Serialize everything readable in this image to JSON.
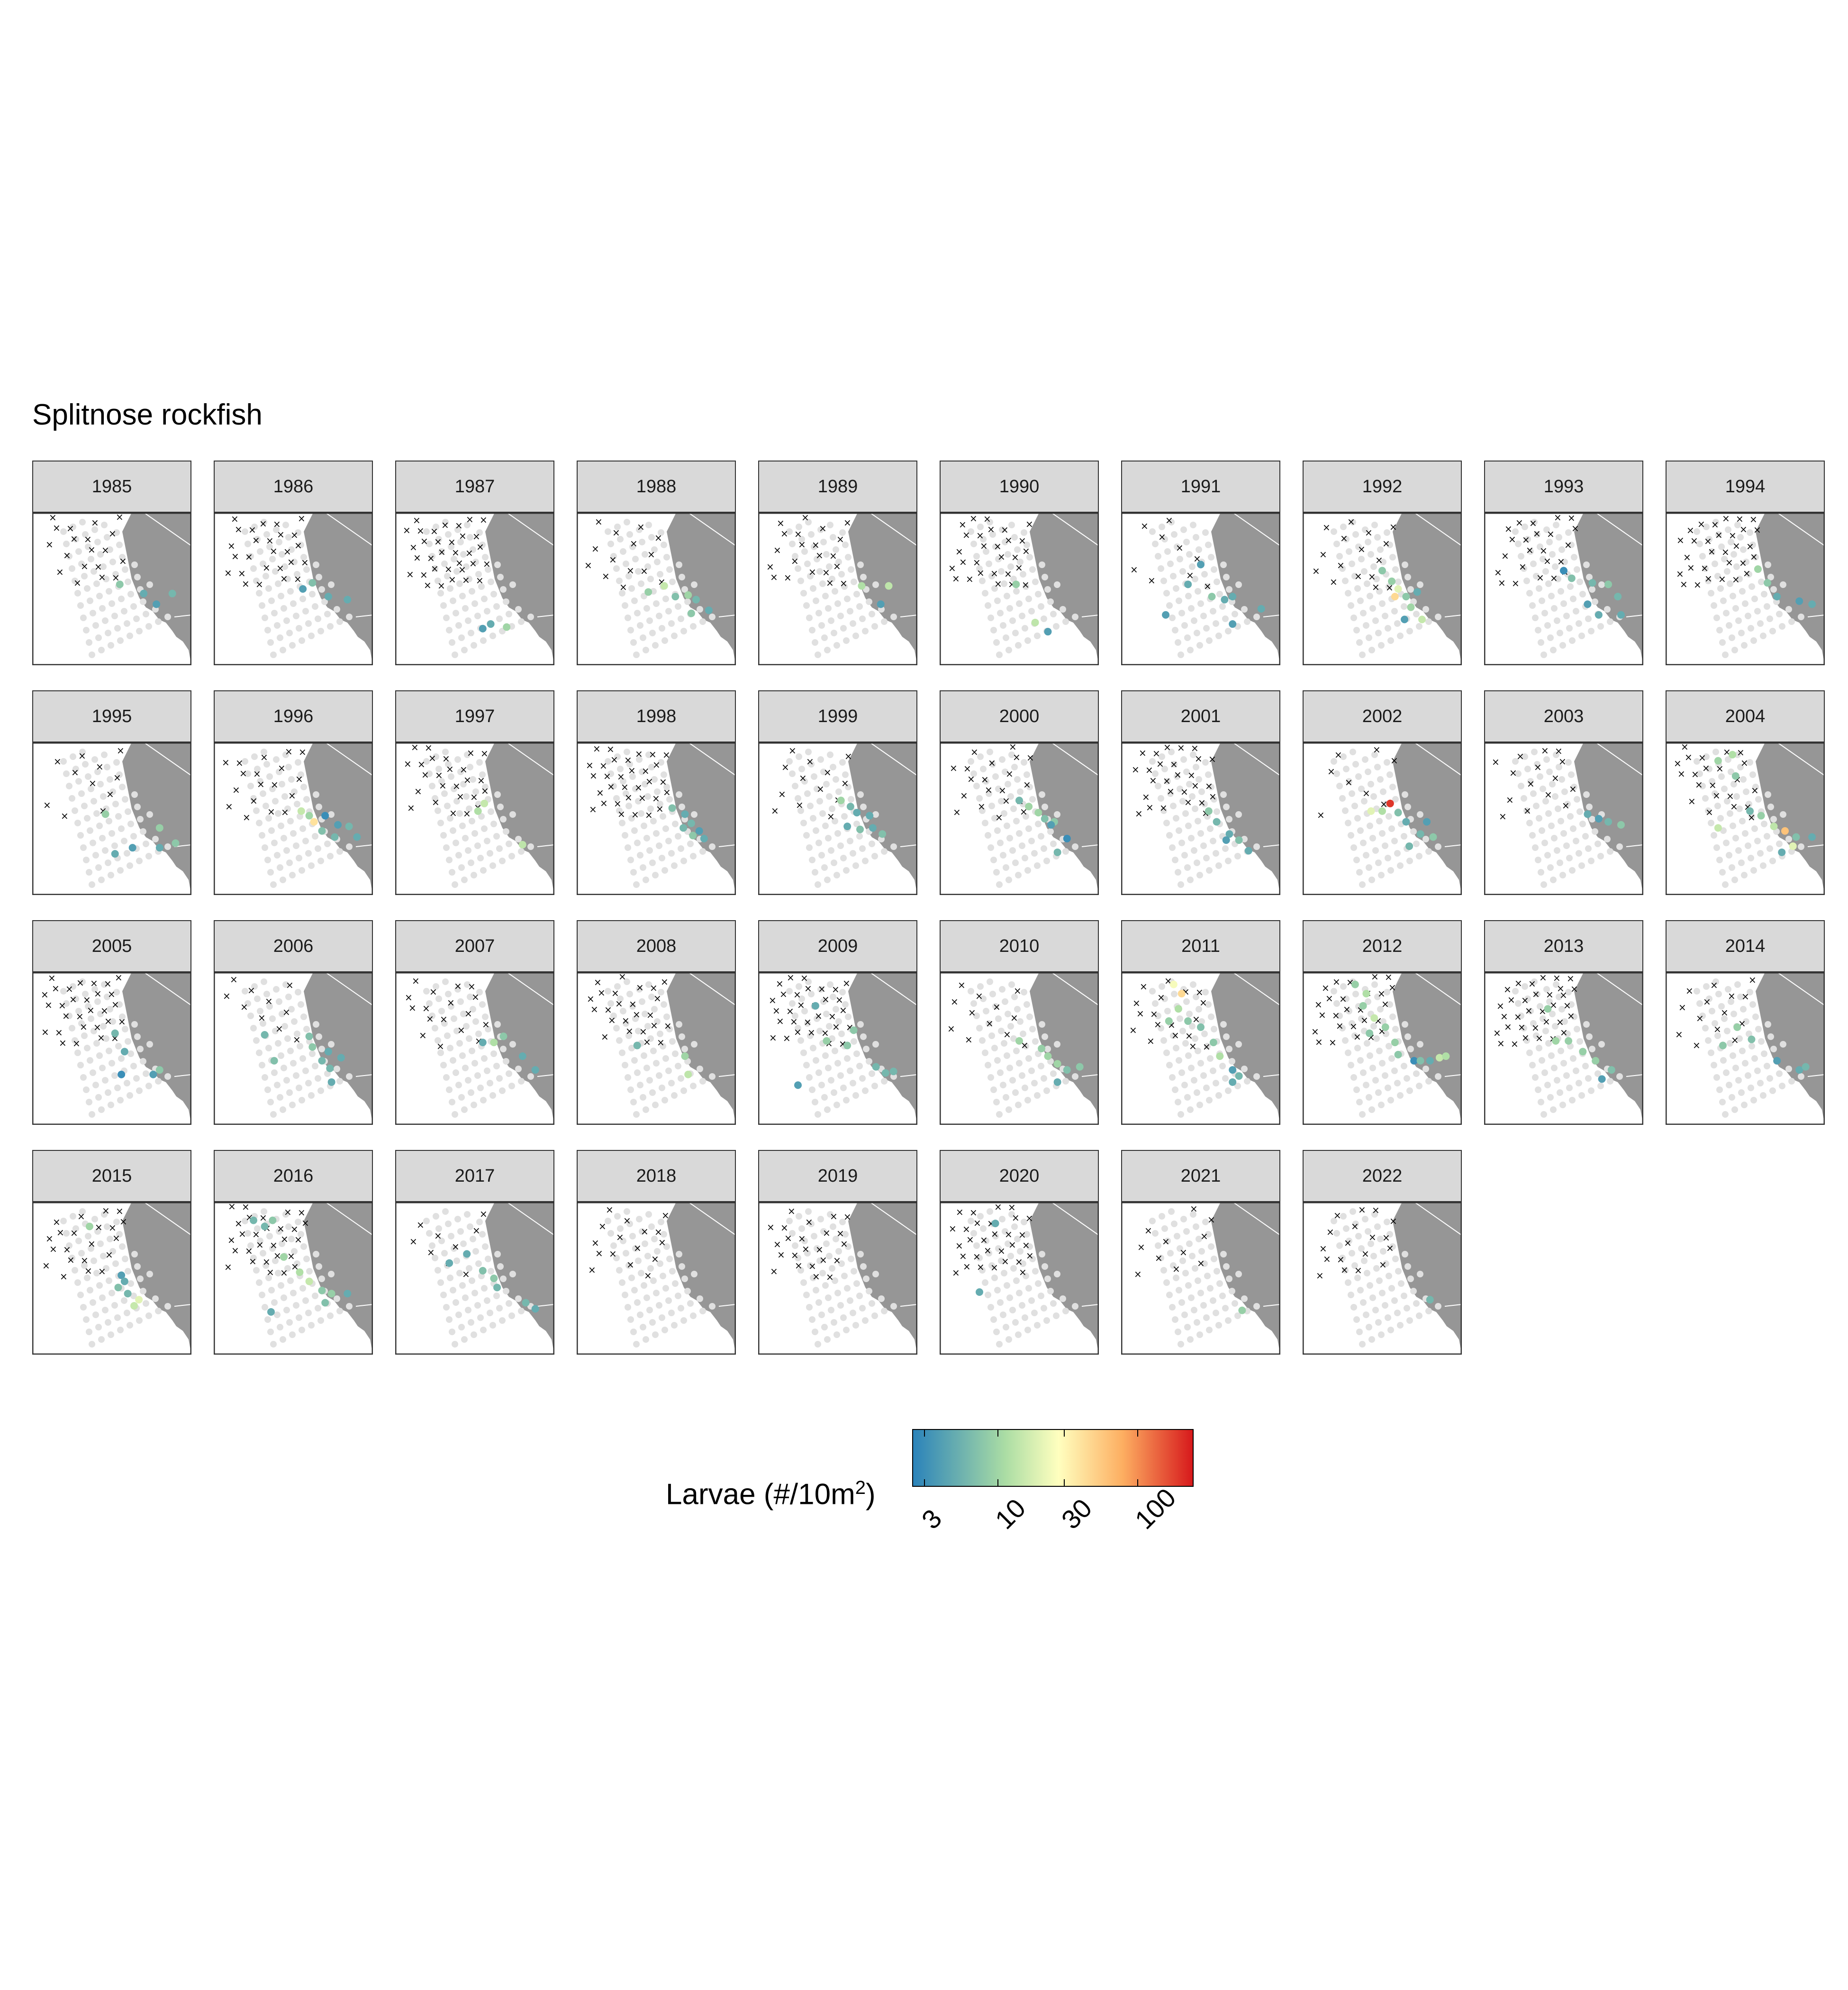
{
  "title": "Splitnose rockfish",
  "chart_data": {
    "type": "scatter",
    "title": "Splitnose rockfish",
    "facet_variable": "year",
    "colorbar": {
      "label_prefix": "Larvae (#/10m",
      "label_sup": "2",
      "label_suffix": ")",
      "scale": "log",
      "range": [
        2.5,
        250
      ],
      "ticks": [
        3,
        10,
        30,
        100
      ],
      "tick_labels": [
        "3",
        "10",
        "30",
        "100"
      ],
      "colors": [
        "#2b83ba",
        "#abdda4",
        "#ffffbf",
        "#fdae61",
        "#d7191c"
      ]
    },
    "legend_placement": "bottom",
    "colors": {
      "land": "#969696",
      "station_no_catch": "#e0e0e0",
      "not_sampled_marker": "#000000",
      "strip_fill": "#d9d9d9"
    },
    "panels": [
      {
        "year": "1985",
        "positives": [
          [
            55,
            47,
            8
          ],
          [
            70,
            53,
            5
          ],
          [
            88,
            53,
            6
          ],
          [
            78,
            60,
            4
          ]
        ]
      },
      {
        "year": "1986",
        "positives": [
          [
            62,
            46,
            7
          ],
          [
            56,
            50,
            4
          ],
          [
            72,
            55,
            5
          ],
          [
            84,
            57,
            5
          ]
        ]
      },
      {
        "year": "1987",
        "positives": [
          [
            55,
            76,
            4
          ],
          [
            60,
            73,
            5
          ],
          [
            70,
            75,
            10
          ]
        ]
      },
      {
        "year": "1988",
        "positives": [
          [
            45,
            52,
            9
          ],
          [
            55,
            48,
            15
          ],
          [
            62,
            55,
            7
          ],
          [
            70,
            54,
            10
          ],
          [
            75,
            57,
            6
          ],
          [
            83,
            64,
            5
          ],
          [
            72,
            66,
            8
          ]
        ]
      },
      {
        "year": "1989",
        "positives": [
          [
            65,
            48,
            12
          ],
          [
            77,
            60,
            4
          ],
          [
            82,
            48,
            14
          ]
        ]
      },
      {
        "year": "1990",
        "positives": [
          [
            48,
            47,
            9
          ],
          [
            60,
            72,
            14
          ],
          [
            68,
            78,
            4
          ]
        ]
      },
      {
        "year": "1991",
        "positives": [
          [
            50,
            34,
            4
          ],
          [
            42,
            47,
            5
          ],
          [
            57,
            55,
            8
          ],
          [
            65,
            57,
            5
          ],
          [
            70,
            55,
            5
          ],
          [
            88,
            63,
            5
          ],
          [
            70,
            73,
            4
          ],
          [
            28,
            67,
            4
          ]
        ]
      },
      {
        "year": "1992",
        "positives": [
          [
            50,
            38,
            8
          ],
          [
            56,
            45,
            9
          ],
          [
            60,
            50,
            20
          ],
          [
            58,
            55,
            45
          ],
          [
            65,
            55,
            8
          ],
          [
            68,
            62,
            10
          ],
          [
            75,
            70,
            15
          ],
          [
            64,
            70,
            4
          ],
          [
            72,
            52,
            5
          ]
        ]
      },
      {
        "year": "1993",
        "positives": [
          [
            50,
            38,
            3
          ],
          [
            55,
            43,
            7
          ],
          [
            68,
            46,
            6
          ],
          [
            78,
            47,
            8
          ],
          [
            84,
            55,
            6
          ],
          [
            65,
            60,
            4
          ],
          [
            72,
            67,
            5
          ],
          [
            86,
            67,
            5
          ]
        ]
      },
      {
        "year": "1994",
        "positives": [
          [
            58,
            37,
            10
          ],
          [
            64,
            46,
            8
          ],
          [
            70,
            55,
            5
          ],
          [
            84,
            58,
            4
          ],
          [
            92,
            60,
            5
          ]
        ]
      },
      {
        "year": "1995",
        "positives": [
          [
            46,
            47,
            9
          ],
          [
            63,
            69,
            4
          ],
          [
            52,
            73,
            5
          ],
          [
            80,
            56,
            9
          ],
          [
            90,
            66,
            8
          ],
          [
            80,
            69,
            5
          ]
        ]
      },
      {
        "year": "1996",
        "positives": [
          [
            55,
            45,
            15
          ],
          [
            60,
            48,
            10
          ],
          [
            63,
            52,
            40
          ],
          [
            70,
            48,
            3
          ],
          [
            78,
            54,
            4
          ],
          [
            85,
            55,
            6
          ],
          [
            68,
            58,
            7
          ],
          [
            90,
            62,
            5
          ],
          [
            76,
            62,
            6
          ]
        ]
      },
      {
        "year": "1997",
        "positives": [
          [
            52,
            45,
            12
          ],
          [
            56,
            40,
            15
          ],
          [
            80,
            67,
            14
          ]
        ]
      },
      {
        "year": "1998",
        "positives": [
          [
            60,
            43,
            7
          ],
          [
            68,
            47,
            5
          ],
          [
            72,
            53,
            6
          ],
          [
            77,
            58,
            4
          ],
          [
            67,
            56,
            6
          ],
          [
            73,
            61,
            8
          ],
          [
            80,
            63,
            5
          ]
        ]
      },
      {
        "year": "1999",
        "positives": [
          [
            52,
            38,
            10
          ],
          [
            58,
            42,
            6
          ],
          [
            62,
            46,
            5
          ],
          [
            70,
            48,
            5
          ],
          [
            56,
            55,
            5
          ],
          [
            72,
            56,
            5
          ],
          [
            78,
            60,
            7
          ],
          [
            64,
            57,
            7
          ]
        ]
      },
      {
        "year": "2000",
        "positives": [
          [
            50,
            38,
            6
          ],
          [
            56,
            42,
            10
          ],
          [
            62,
            46,
            10
          ],
          [
            66,
            50,
            7
          ],
          [
            72,
            52,
            8
          ],
          [
            80,
            63,
            3
          ],
          [
            74,
            72,
            6
          ],
          [
            70,
            54,
            4
          ]
        ]
      },
      {
        "year": "2001",
        "positives": [
          [
            55,
            45,
            8
          ],
          [
            60,
            52,
            6
          ],
          [
            68,
            60,
            5
          ],
          [
            74,
            64,
            7
          ],
          [
            66,
            64,
            4
          ],
          [
            80,
            71,
            5
          ]
        ]
      },
      {
        "year": "2002",
        "positives": [
          [
            55,
            40,
            200
          ],
          [
            43,
            45,
            20
          ],
          [
            50,
            45,
            12
          ],
          [
            60,
            46,
            7
          ],
          [
            65,
            52,
            5
          ],
          [
            78,
            52,
            4
          ],
          [
            74,
            60,
            6
          ],
          [
            82,
            62,
            8
          ],
          [
            67,
            68,
            6
          ]
        ]
      },
      {
        "year": "2003",
        "positives": [
          [
            65,
            47,
            5
          ],
          [
            72,
            50,
            4
          ],
          [
            78,
            52,
            6
          ],
          [
            86,
            54,
            8
          ]
        ]
      },
      {
        "year": "2004",
        "positives": [
          [
            33,
            12,
            10
          ],
          [
            42,
            8,
            12
          ],
          [
            44,
            22,
            8
          ],
          [
            53,
            45,
            6
          ],
          [
            60,
            48,
            9
          ],
          [
            68,
            55,
            14
          ],
          [
            33,
            56,
            15
          ],
          [
            75,
            58,
            60
          ],
          [
            82,
            62,
            7
          ],
          [
            92,
            62,
            5
          ],
          [
            80,
            68,
            20
          ],
          [
            73,
            72,
            5
          ]
        ]
      },
      {
        "year": "2005",
        "positives": [
          [
            52,
            40,
            6
          ],
          [
            58,
            52,
            5
          ],
          [
            56,
            67,
            3
          ],
          [
            80,
            64,
            8
          ],
          [
            76,
            67,
            4
          ]
        ]
      },
      {
        "year": "2006",
        "positives": [
          [
            32,
            41,
            6
          ],
          [
            60,
            42,
            7
          ],
          [
            62,
            49,
            8
          ],
          [
            72,
            52,
            5
          ],
          [
            80,
            56,
            5
          ],
          [
            68,
            58,
            6
          ],
          [
            73,
            63,
            6
          ],
          [
            74,
            72,
            5
          ],
          [
            38,
            58,
            7
          ]
        ]
      },
      {
        "year": "2007",
        "positives": [
          [
            55,
            46,
            5
          ],
          [
            62,
            46,
            12
          ],
          [
            68,
            42,
            8
          ],
          [
            80,
            55,
            5
          ],
          [
            88,
            64,
            5
          ]
        ]
      },
      {
        "year": "2008",
        "positives": [
          [
            38,
            48,
            6
          ],
          [
            68,
            55,
            10
          ],
          [
            70,
            67,
            14
          ]
        ]
      },
      {
        "year": "2009",
        "positives": [
          [
            36,
            22,
            5
          ],
          [
            43,
            45,
            9
          ],
          [
            56,
            48,
            8
          ],
          [
            60,
            38,
            8
          ],
          [
            74,
            62,
            6
          ],
          [
            80,
            66,
            6
          ],
          [
            85,
            65,
            6
          ],
          [
            25,
            74,
            4
          ]
        ]
      },
      {
        "year": "2010",
        "positives": [
          [
            50,
            45,
            10
          ],
          [
            64,
            50,
            9
          ],
          [
            68,
            55,
            10
          ],
          [
            74,
            60,
            10
          ],
          [
            80,
            64,
            7
          ],
          [
            88,
            62,
            8
          ],
          [
            74,
            72,
            5
          ]
        ]
      },
      {
        "year": "2011",
        "positives": [
          [
            33,
            8,
            25
          ],
          [
            38,
            14,
            45
          ],
          [
            36,
            24,
            12
          ],
          [
            30,
            32,
            9
          ],
          [
            42,
            32,
            8
          ],
          [
            50,
            36,
            7
          ],
          [
            58,
            46,
            8
          ],
          [
            70,
            64,
            4
          ],
          [
            74,
            68,
            6
          ],
          [
            70,
            72,
            5
          ],
          [
            62,
            55,
            12
          ]
        ]
      },
      {
        "year": "2012",
        "positives": [
          [
            33,
            8,
            9
          ],
          [
            40,
            14,
            12
          ],
          [
            38,
            22,
            9
          ],
          [
            45,
            30,
            15
          ],
          [
            42,
            40,
            8
          ],
          [
            52,
            36,
            9
          ],
          [
            58,
            46,
            9
          ],
          [
            60,
            54,
            8
          ],
          [
            70,
            58,
            3
          ],
          [
            74,
            58,
            7
          ],
          [
            80,
            58,
            5
          ],
          [
            86,
            56,
            15
          ],
          [
            90,
            55,
            12
          ]
        ]
      },
      {
        "year": "2013",
        "positives": [
          [
            40,
            24,
            9
          ],
          [
            45,
            45,
            10
          ],
          [
            53,
            45,
            9
          ],
          [
            62,
            52,
            9
          ],
          [
            70,
            58,
            9
          ],
          [
            80,
            64,
            7
          ],
          [
            74,
            70,
            4
          ]
        ]
      },
      {
        "year": "2014",
        "positives": [
          [
            45,
            36,
            9
          ],
          [
            54,
            44,
            7
          ],
          [
            36,
            48,
            8
          ],
          [
            70,
            58,
            4
          ],
          [
            84,
            64,
            5
          ],
          [
            88,
            62,
            6
          ]
        ]
      },
      {
        "year": "2015",
        "positives": [
          [
            56,
            48,
            4
          ],
          [
            58,
            52,
            5
          ],
          [
            54,
            56,
            7
          ],
          [
            60,
            60,
            6
          ],
          [
            67,
            64,
            20
          ],
          [
            64,
            68,
            15
          ],
          [
            36,
            16,
            10
          ]
        ]
      },
      {
        "year": "2016",
        "positives": [
          [
            25,
            12,
            6
          ],
          [
            32,
            16,
            6
          ],
          [
            37,
            12,
            8
          ],
          [
            44,
            36,
            10
          ],
          [
            54,
            46,
            12
          ],
          [
            60,
            52,
            15
          ],
          [
            68,
            58,
            8
          ],
          [
            70,
            66,
            7
          ],
          [
            36,
            72,
            5
          ],
          [
            74,
            60,
            9
          ],
          [
            84,
            60,
            5
          ]
        ]
      },
      {
        "year": "2017",
        "positives": [
          [
            45,
            34,
            5
          ],
          [
            55,
            45,
            7
          ],
          [
            62,
            50,
            8
          ],
          [
            64,
            56,
            6
          ],
          [
            82,
            66,
            6
          ],
          [
            88,
            70,
            5
          ],
          [
            34,
            40,
            5
          ]
        ]
      },
      {
        "year": "2018",
        "positives": []
      },
      {
        "year": "2019",
        "positives": []
      },
      {
        "year": "2020",
        "positives": [
          [
            35,
            14,
            5
          ],
          [
            25,
            59,
            5
          ]
        ]
      },
      {
        "year": "2021",
        "positives": [
          [
            76,
            71,
            9
          ]
        ]
      },
      {
        "year": "2022",
        "positives": [
          [
            80,
            64,
            6
          ]
        ]
      }
    ]
  }
}
